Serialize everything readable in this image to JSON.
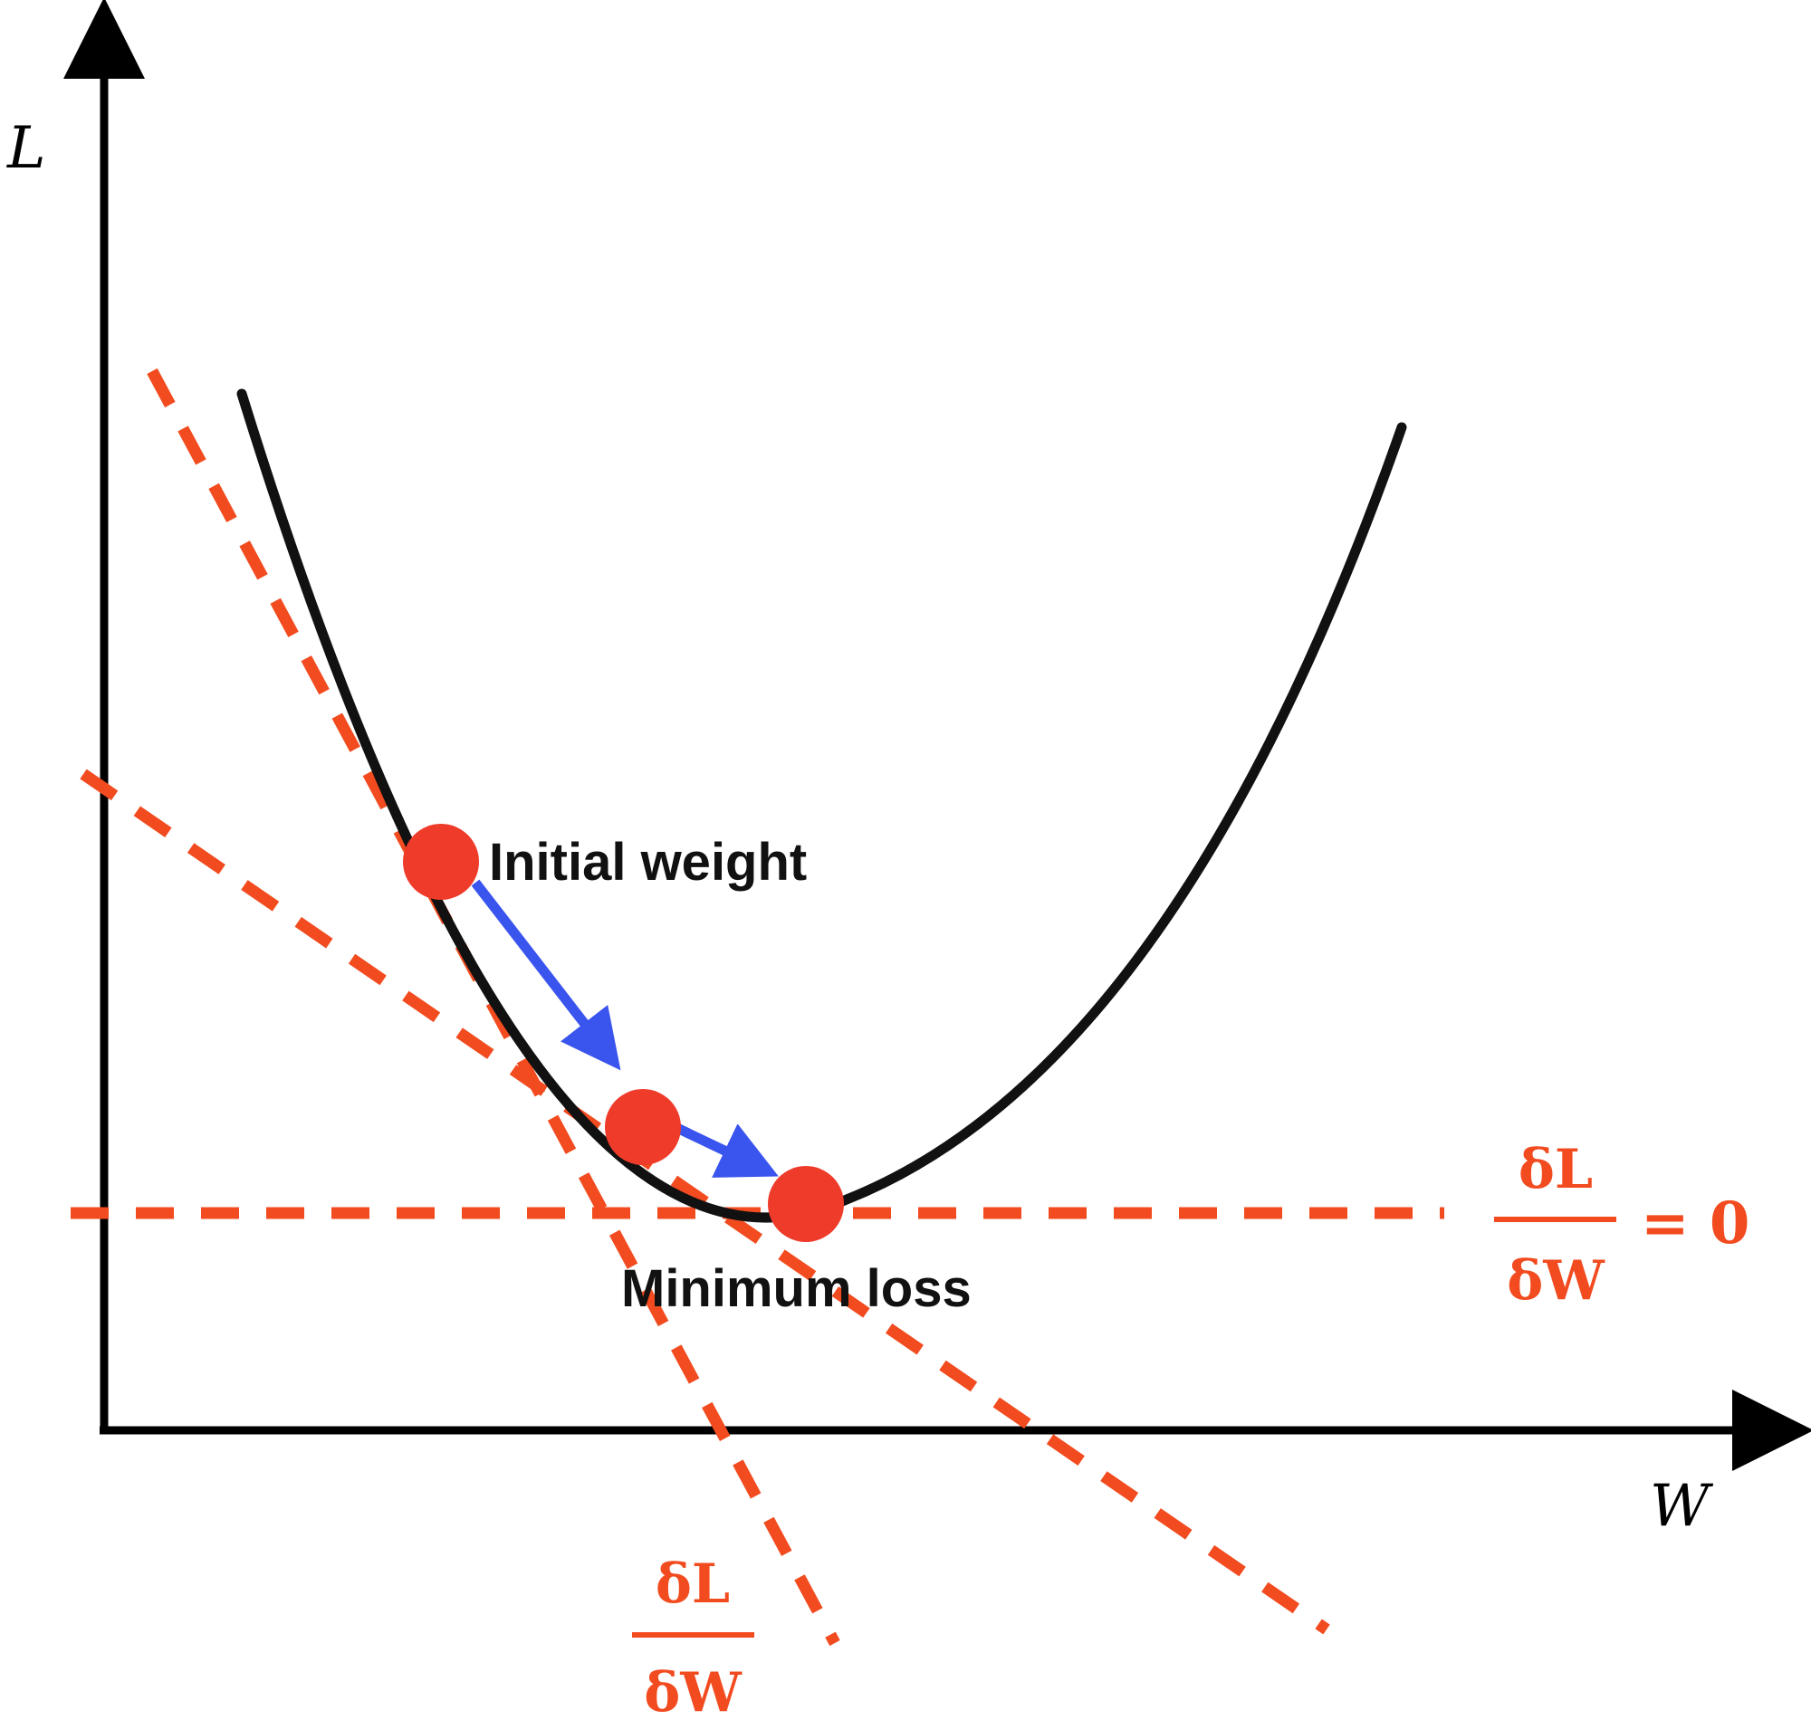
{
  "axes": {
    "y_label": "L",
    "x_label": "W"
  },
  "annotations": {
    "initial_weight": "Initial weight",
    "minimum_loss": "Minimum loss"
  },
  "gradient_labels": {
    "tangent": {
      "numerator": "δL",
      "denominator": "δW"
    },
    "zero": {
      "numerator": "δL",
      "denominator": "δW",
      "rest": "= 0"
    }
  },
  "colors": {
    "curve": "#111111",
    "tangent": "#f24b1f",
    "point": "#ee3b2a",
    "step_arrow": "#3a54ee",
    "axis": "#000000"
  }
}
